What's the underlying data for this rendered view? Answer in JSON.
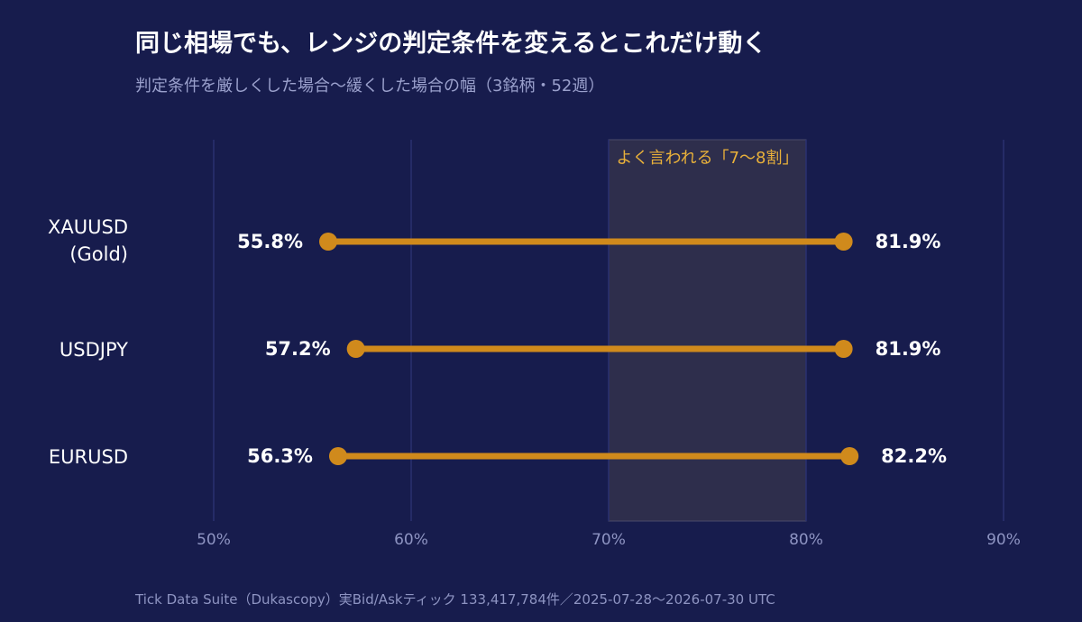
{
  "title": "同じ相場でも、レンジの判定条件を変えるとこれだけ動く",
  "subtitle": "判定条件を厳しくした場合〜緩くした場合の幅（3銘柄・52週）",
  "footer": "Tick Data Suite（Dukascopy）実Bid/Askティック 133,417,784件／2025-07-28〜2026-07-30 UTC",
  "colors": {
    "background": "#171c4d",
    "marker": "#d08a1c",
    "band_fill": "#2e2e4c",
    "band_label": "#e8b03a",
    "grid": "#2a3070",
    "tick_label": "#8e94c2"
  },
  "chart_data": {
    "type": "dumbbell",
    "title": "同じ相場でも、レンジの判定条件を変えるとこれだけ動く",
    "subtitle": "判定条件を厳しくした場合〜緩くした場合の幅（3銘柄・52週）",
    "xlabel": "",
    "ylabel": "",
    "xlim": [
      50,
      90
    ],
    "xticks": [
      50,
      60,
      70,
      80,
      90
    ],
    "xtick_labels": [
      "50%",
      "60%",
      "70%",
      "80%",
      "90%"
    ],
    "grid": true,
    "band": {
      "from": 70,
      "to": 80,
      "label": "よく言われる「7〜8割」"
    },
    "categories": [
      {
        "name_lines": [
          "XAUUSD",
          "(Gold)"
        ],
        "low": 55.8,
        "high": 81.9,
        "low_label": "55.8%",
        "high_label": "81.9%"
      },
      {
        "name_lines": [
          "USDJPY"
        ],
        "low": 57.2,
        "high": 81.9,
        "low_label": "57.2%",
        "high_label": "81.9%"
      },
      {
        "name_lines": [
          "EURUSD"
        ],
        "low": 56.3,
        "high": 82.2,
        "low_label": "56.3%",
        "high_label": "82.2%"
      }
    ]
  }
}
